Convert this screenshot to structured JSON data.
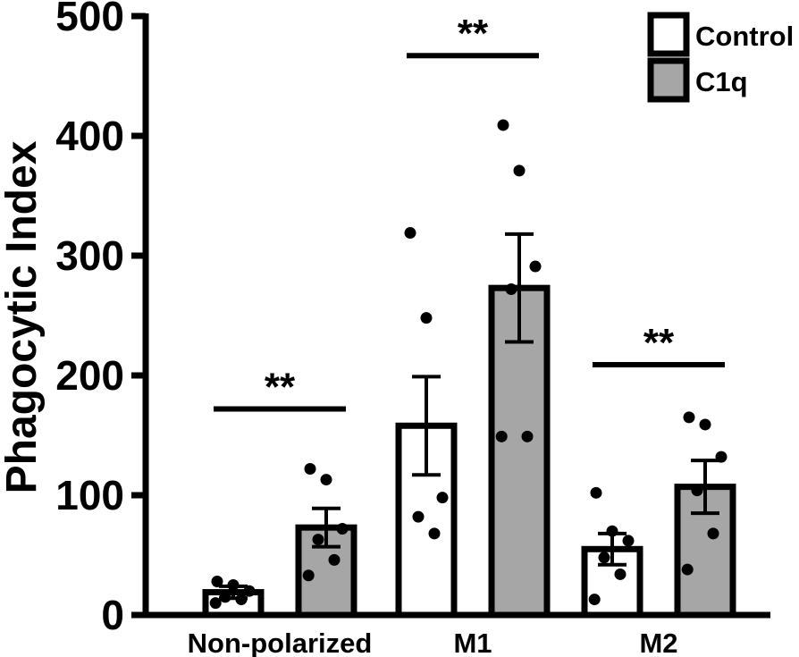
{
  "chart_data": {
    "type": "bar",
    "title": "",
    "xlabel": "",
    "ylabel": "Phagocytic Index",
    "ylim": [
      0,
      500
    ],
    "yticks": [
      0,
      100,
      200,
      300,
      400,
      500
    ],
    "grid": false,
    "legend_position": "top-right",
    "categories": [
      "Non-polarized",
      "M1",
      "M2"
    ],
    "series": [
      {
        "name": "Control",
        "fill": "#ffffff",
        "values": [
          19,
          158,
          55
        ],
        "sem": [
          5,
          41,
          13
        ],
        "points": [
          [
            28,
            25,
            20,
            15,
            13,
            10
          ],
          [
            319,
            248,
            98,
            82,
            68
          ],
          [
            102,
            70,
            62,
            48,
            34,
            13
          ]
        ]
      },
      {
        "name": "C1q",
        "fill": "#a6a6a6",
        "values": [
          73,
          273,
          107
        ],
        "sem": [
          16,
          45,
          22
        ],
        "points": [
          [
            122,
            113,
            72,
            63,
            46,
            33
          ],
          [
            409,
            371,
            291,
            272,
            149,
            149
          ],
          [
            165,
            159,
            132,
            104,
            68,
            38
          ]
        ]
      }
    ],
    "significance": [
      {
        "category": "Non-polarized",
        "label": "**",
        "level": 172
      },
      {
        "category": "M1",
        "label": "**",
        "level": 467
      },
      {
        "category": "M2",
        "label": "**",
        "level": 209
      }
    ]
  },
  "colors": {
    "axis": "#000000",
    "control_fill": "#ffffff",
    "c1q_fill": "#a6a6a6"
  }
}
